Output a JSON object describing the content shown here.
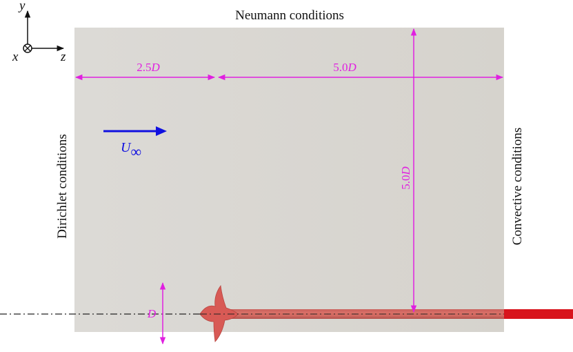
{
  "axes": {
    "y": "y",
    "x": "x",
    "z": "z"
  },
  "boundaries": {
    "top": "Neumann conditions",
    "left": "Dirichlet conditions",
    "right": "Convective conditions"
  },
  "dimensions": {
    "upstream": {
      "number": "2.5",
      "symbol": "D"
    },
    "downstream": {
      "number": "5.0",
      "symbol": "D"
    },
    "height": {
      "number": "5.0",
      "symbol": "D"
    },
    "diameter": "D"
  },
  "flow": {
    "symbol": "U",
    "subscript": "∞"
  }
}
